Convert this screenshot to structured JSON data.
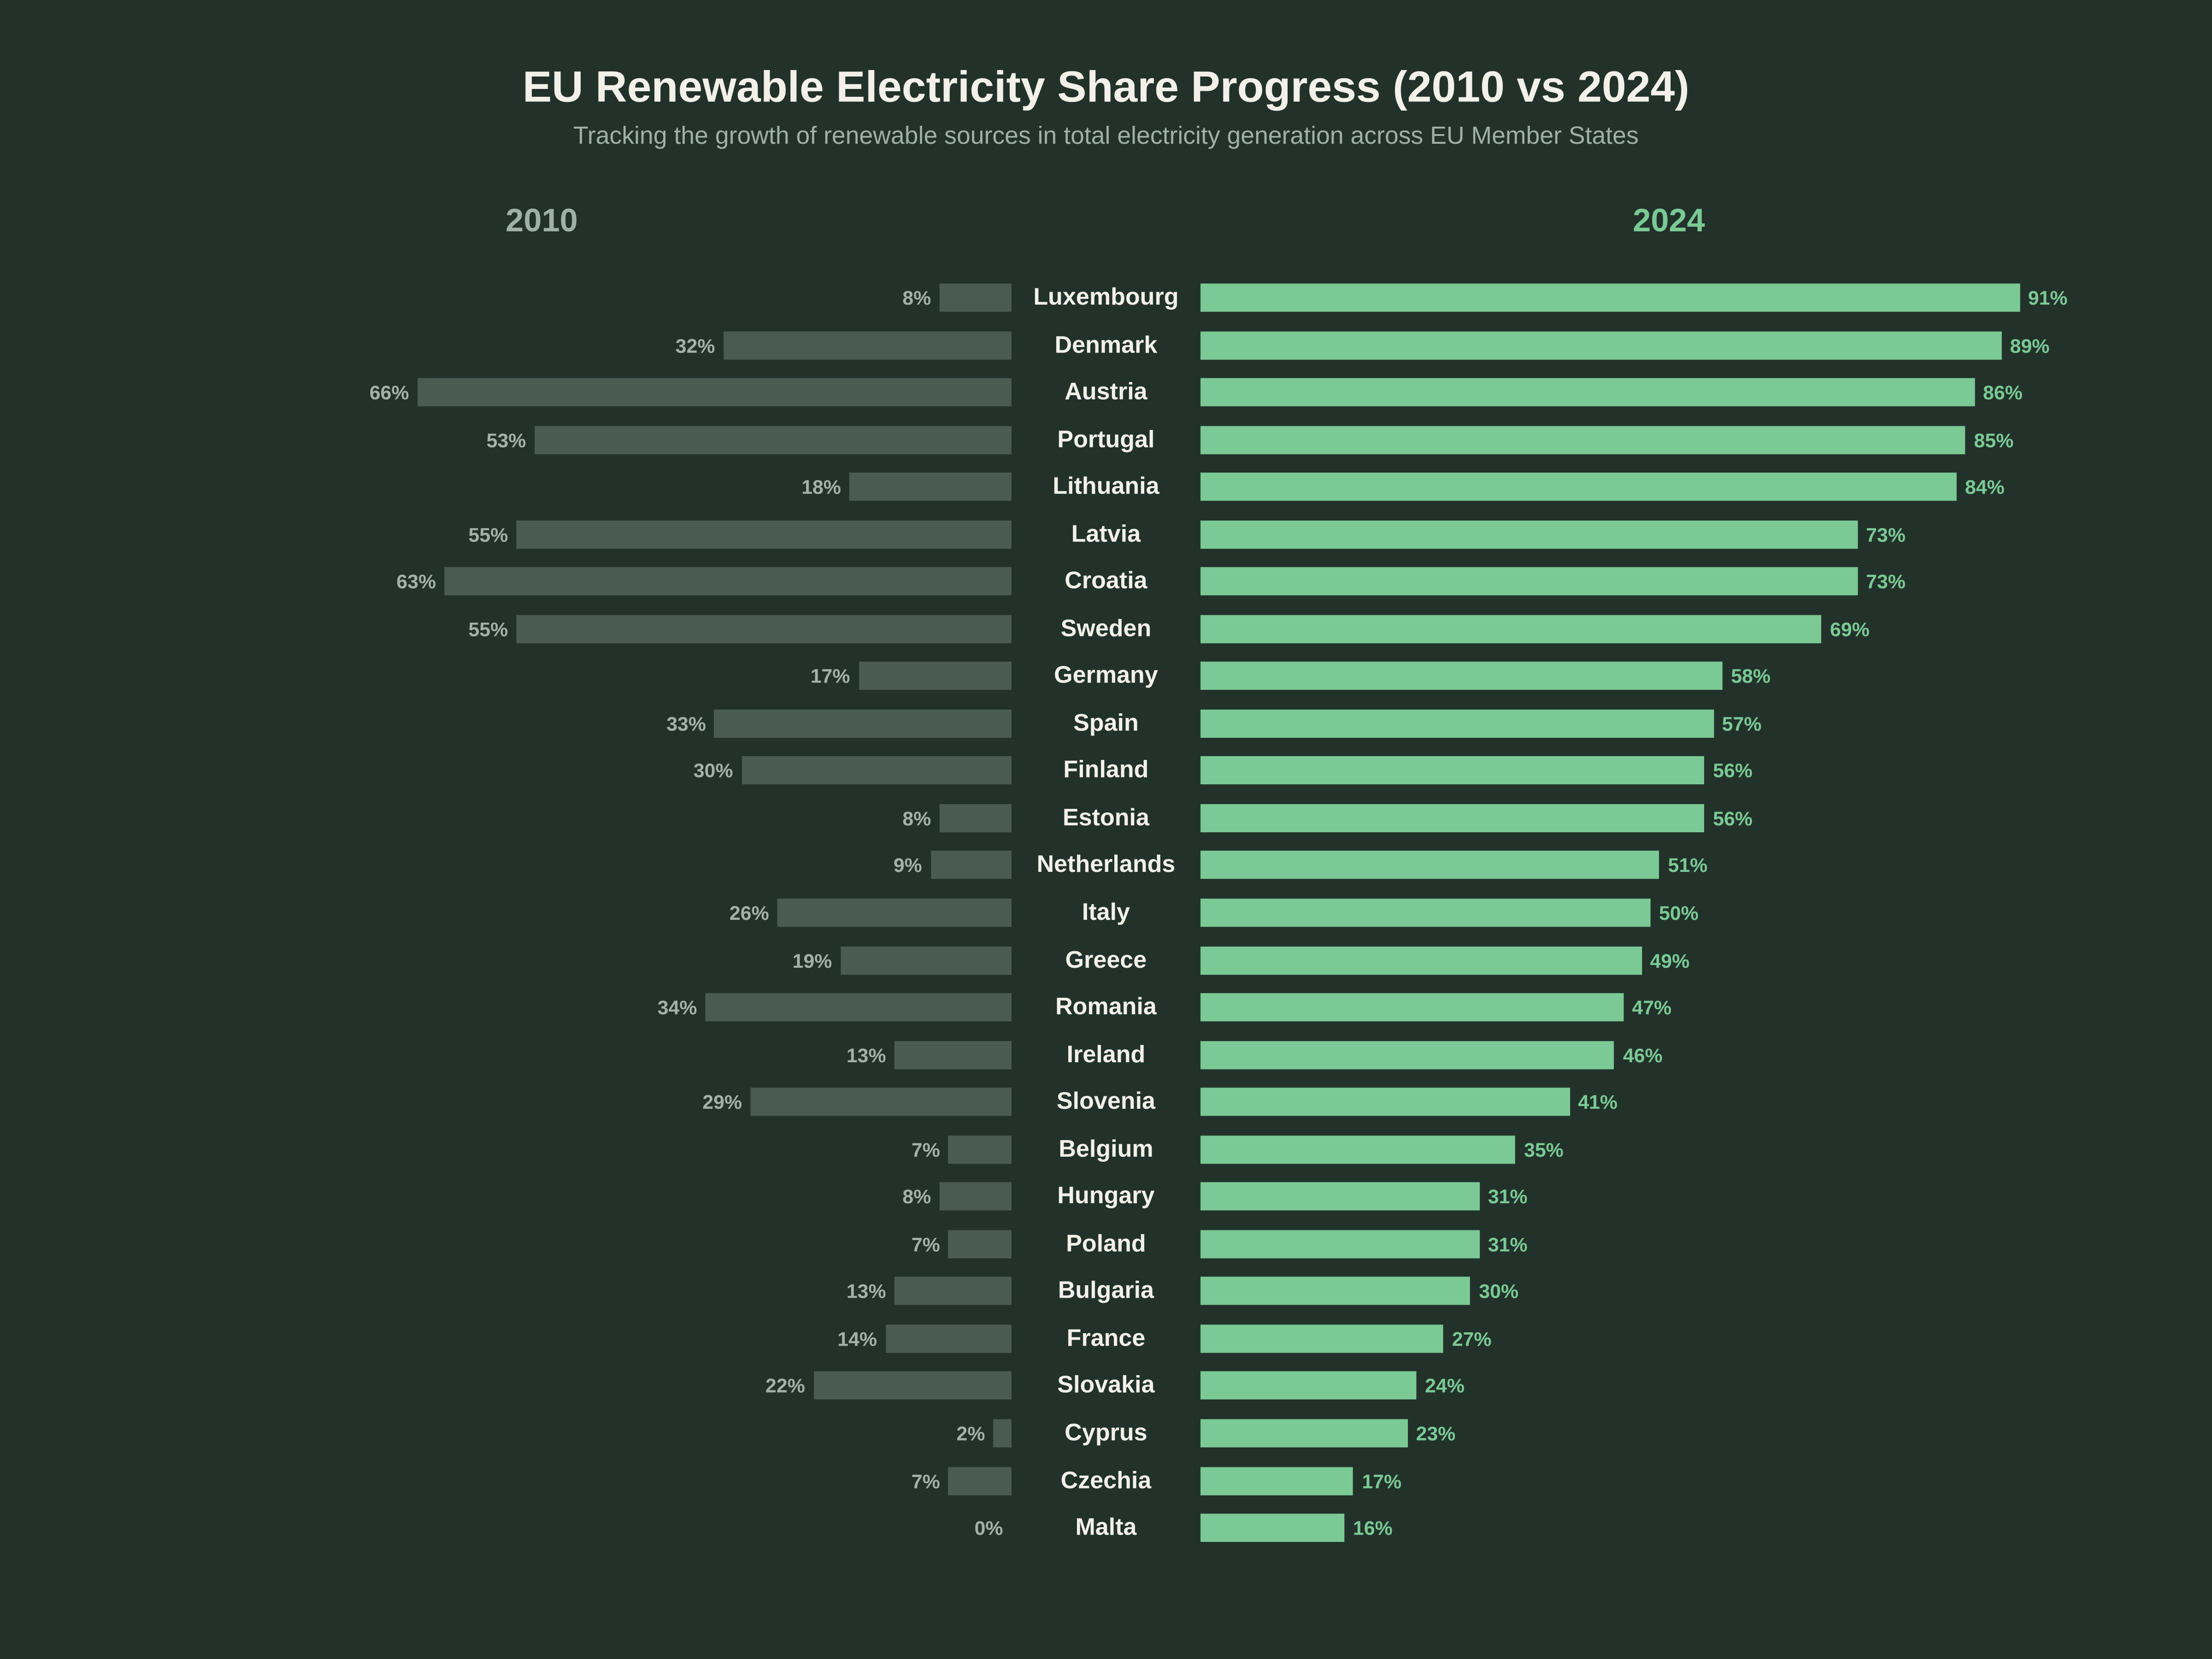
{
  "chart_data": {
    "type": "bar",
    "orientation": "horizontal-diverging",
    "title": "EU Renewable Electricity Share Progress (2010 vs 2024)",
    "subtitle": "Tracking the growth of renewable sources in total electricity generation across EU Member States",
    "unit": "%",
    "categories": [
      "Luxembourg",
      "Denmark",
      "Austria",
      "Portugal",
      "Lithuania",
      "Latvia",
      "Croatia",
      "Sweden",
      "Germany",
      "Spain",
      "Finland",
      "Estonia",
      "Netherlands",
      "Italy",
      "Greece",
      "Romania",
      "Ireland",
      "Slovenia",
      "Belgium",
      "Hungary",
      "Poland",
      "Bulgaria",
      "France",
      "Slovakia",
      "Cyprus",
      "Czechia",
      "Malta"
    ],
    "series": [
      {
        "name": "2010",
        "color": "#4a5c52",
        "label_color": "#a3b1a9",
        "values": [
          8,
          32,
          66,
          53,
          18,
          55,
          63,
          55,
          17,
          33,
          30,
          8,
          9,
          26,
          19,
          34,
          13,
          29,
          7,
          8,
          7,
          13,
          14,
          22,
          2,
          7,
          0
        ]
      },
      {
        "name": "2024",
        "color": "#7bc995",
        "label_color": "#7bc995",
        "values": [
          91,
          89,
          86,
          85,
          84,
          73,
          73,
          69,
          58,
          57,
          56,
          56,
          51,
          50,
          49,
          47,
          46,
          41,
          35,
          31,
          31,
          30,
          27,
          24,
          23,
          17,
          16
        ]
      }
    ],
    "grid": false,
    "background": "#22322b"
  }
}
